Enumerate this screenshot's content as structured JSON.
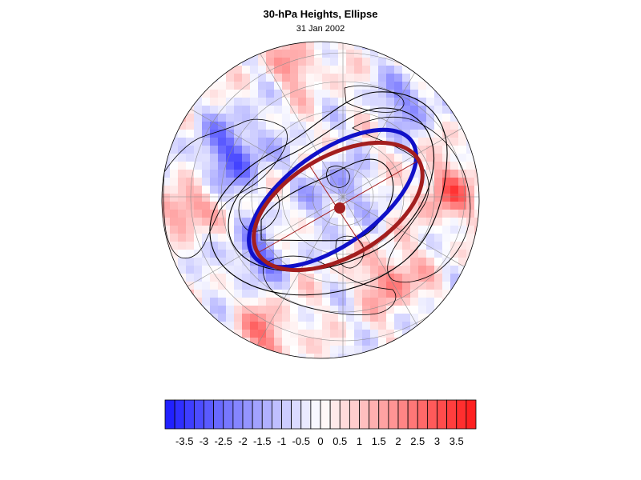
{
  "title": "30-hPa Heights, Ellipse",
  "subtitle": "31 Jan 2002",
  "colorbar": {
    "tick_labels": [
      "-3.5",
      "-3",
      "-2.5",
      "-2",
      "-1.5",
      "-1",
      "-0.5",
      "0",
      "0.5",
      "1",
      "1.5",
      "2",
      "2.5",
      "3",
      "3.5"
    ],
    "min": -4,
    "max": 4,
    "step": 0.25,
    "negative_color": "#1a1aff",
    "neutral_color": "#ffffff",
    "positive_color": "#ff1a1a"
  },
  "map": {
    "projection": "polar-orthographic",
    "ellipse_blue_color": "#1010c8",
    "ellipse_red_color": "#a31e1e",
    "contour_color": "#000000",
    "center_marker_color": "#a31e1e"
  }
}
